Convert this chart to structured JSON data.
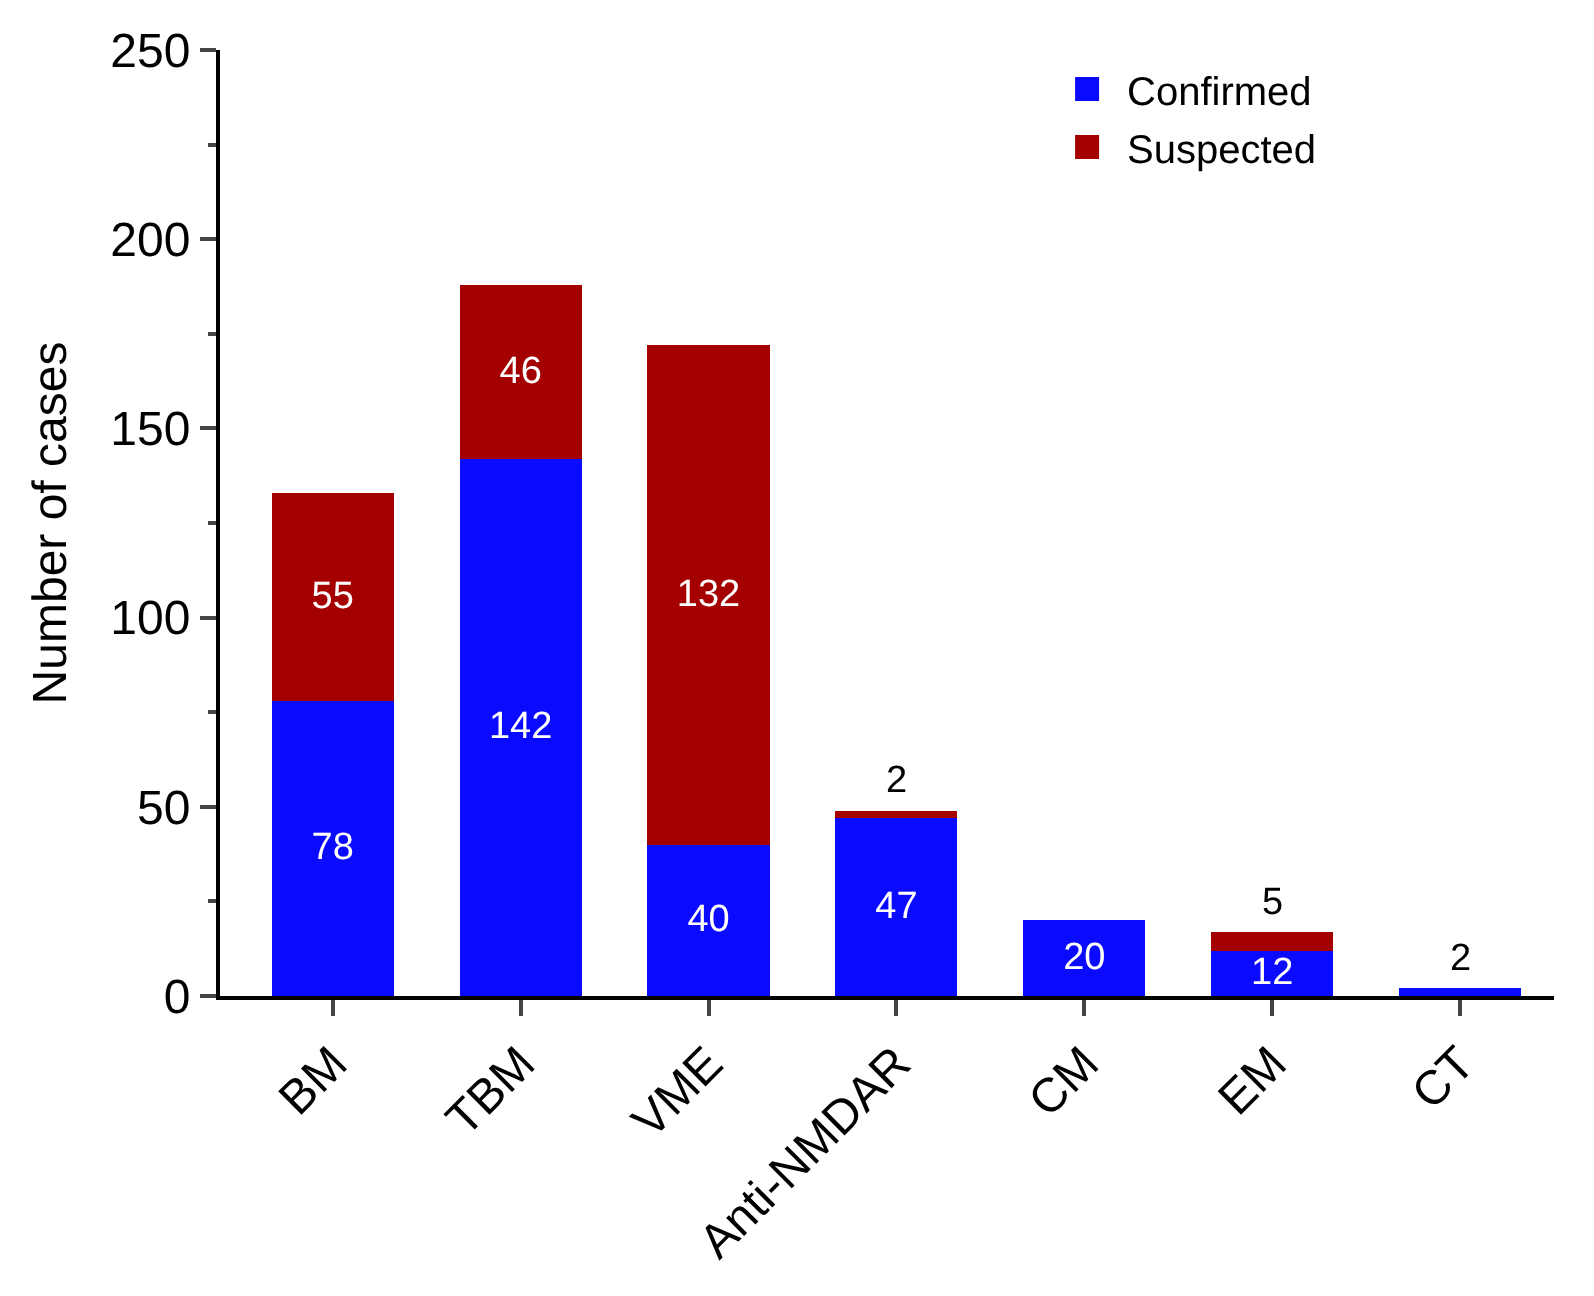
{
  "chart_data": {
    "type": "bar",
    "stacked": true,
    "categories": [
      "BM",
      "TBM",
      "VME",
      "Anti-NMDAR",
      "CM",
      "EM",
      "CT"
    ],
    "series": [
      {
        "name": "Confirmed",
        "color": "#0a0aff",
        "values": [
          78,
          142,
          40,
          47,
          20,
          12,
          2
        ],
        "value_labels": [
          "78",
          "142",
          "40",
          "47",
          "20",
          "12",
          "2"
        ]
      },
      {
        "name": "Suspected",
        "color": "#a50000",
        "values": [
          55,
          46,
          132,
          2,
          0,
          5,
          0
        ],
        "value_labels": [
          "55",
          "46",
          "132",
          "2",
          null,
          "5",
          null
        ]
      }
    ],
    "ylabel": "Number of cases",
    "ylim": [
      0,
      250
    ],
    "yticks": [
      0,
      50,
      100,
      150,
      200,
      250
    ],
    "legend": "top right"
  }
}
